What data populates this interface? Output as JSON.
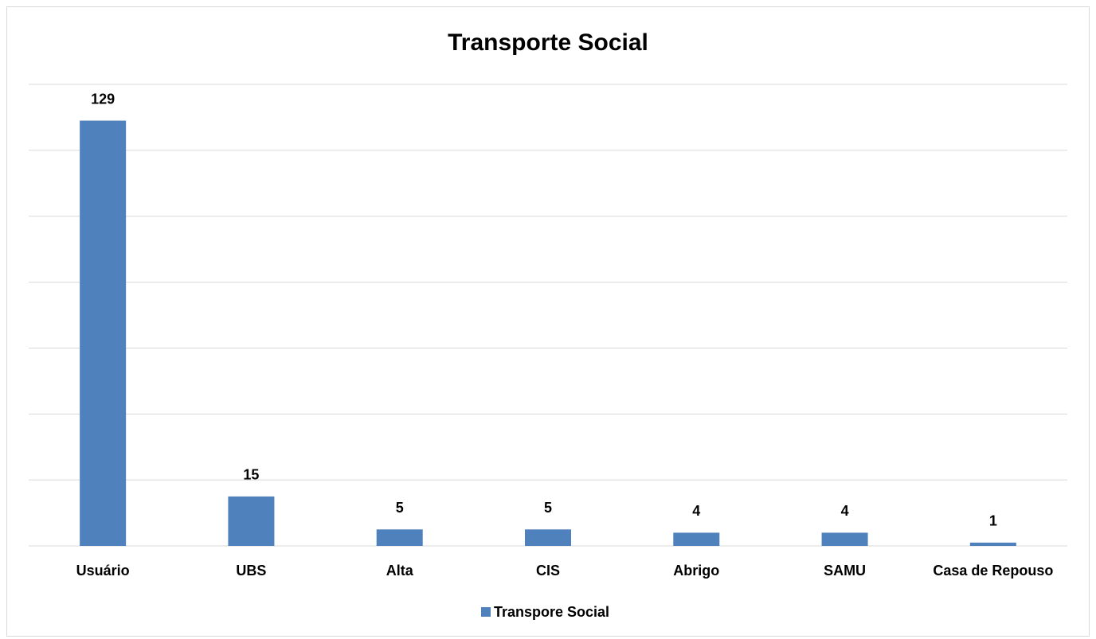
{
  "chart_data": {
    "type": "bar",
    "title": "Transporte Social",
    "categories": [
      "Usuário",
      "UBS",
      "Alta",
      "CIS",
      "Abrigo",
      "SAMU",
      "Casa de Repouso"
    ],
    "series": [
      {
        "name": "Transpore Social",
        "color": "#4f81bd",
        "values": [
          129,
          15,
          5,
          5,
          4,
          4,
          1
        ]
      }
    ],
    "ylim": [
      0,
      140
    ],
    "yticks": [
      0,
      20,
      40,
      60,
      80,
      100,
      120,
      140
    ],
    "grid": true,
    "legend": "bottom"
  }
}
